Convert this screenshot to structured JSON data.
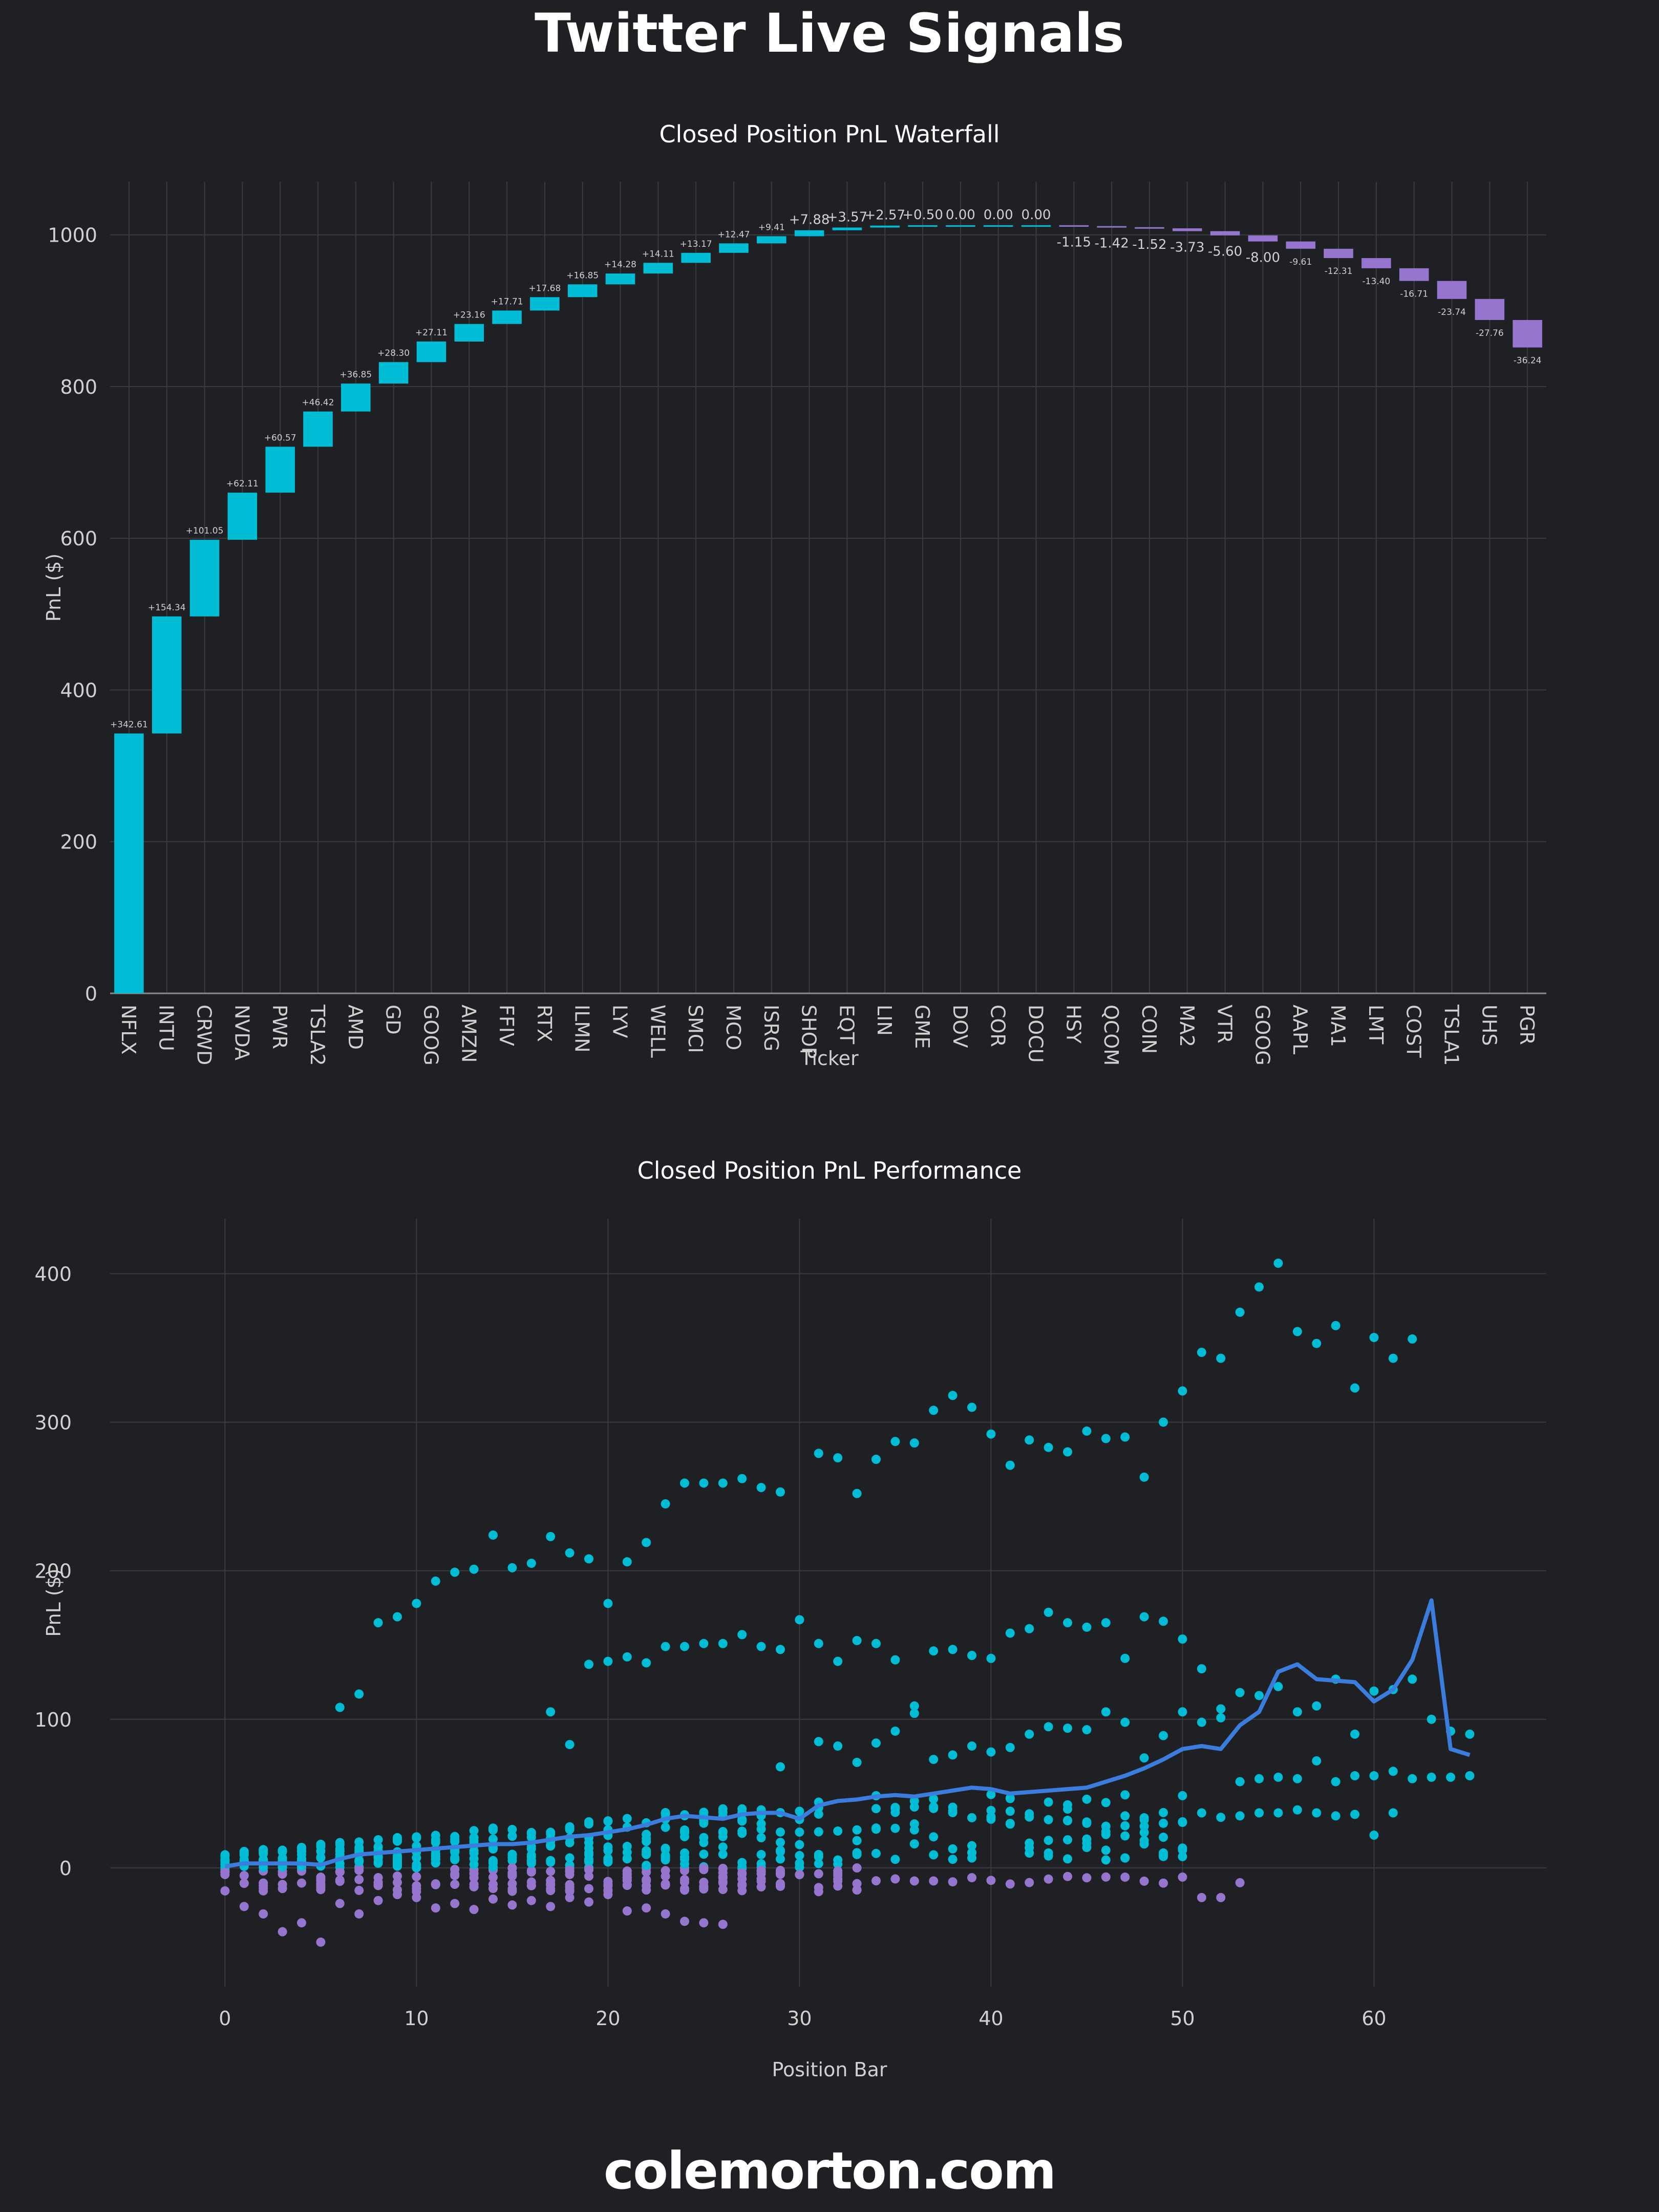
{
  "page": {
    "title": "Twitter Live Signals",
    "footer": "colemorton.com",
    "background": "#1f2024"
  },
  "colors": {
    "positive": "#00bcd4",
    "negative": "#9575cd",
    "rolling_line": "#3b7ddd",
    "grid": "#3a3b40",
    "text": "#d0d0d0"
  },
  "chart_data": [
    {
      "type": "bar",
      "subtype": "waterfall",
      "title": "Closed Position PnL Waterfall",
      "xlabel": "Ticker",
      "ylabel": "PnL ($)",
      "ylim": [
        0,
        1070
      ],
      "yticks": [
        0,
        200,
        400,
        600,
        800,
        1000
      ],
      "grid": true,
      "categories": [
        "NFLX",
        "INTU",
        "CRWD",
        "NVDA",
        "PWR",
        "TSLA2",
        "AMD",
        "GD",
        "GOOG",
        "AMZN",
        "FFIV",
        "RTX",
        "ILMN",
        "LYV",
        "WELL",
        "SMCI",
        "MCO",
        "ISRG",
        "SHOP",
        "EQT",
        "LIN",
        "GME",
        "DOV",
        "COR",
        "DOCU",
        "HSY",
        "QCOM",
        "COIN",
        "MA2",
        "VTR",
        "GOOG",
        "AAPL",
        "MA1",
        "LMT",
        "COST",
        "TSLA1",
        "UHS",
        "PGR"
      ],
      "values": [
        342.61,
        154.34,
        101.05,
        62.11,
        60.57,
        46.42,
        36.85,
        28.3,
        27.11,
        23.16,
        17.71,
        17.68,
        16.85,
        14.28,
        14.11,
        13.17,
        12.47,
        9.41,
        7.88,
        3.57,
        2.57,
        0.5,
        0.0,
        0.0,
        0.0,
        -1.15,
        -1.42,
        -1.52,
        -3.73,
        -5.6,
        -8.0,
        -9.61,
        -12.31,
        -13.4,
        -16.71,
        -23.74,
        -27.76,
        -36.24
      ],
      "labels": [
        "+342.61",
        "+154.34",
        "+101.05",
        "+62.11",
        "+60.57",
        "+46.42",
        "+36.85",
        "+28.30",
        "+27.11",
        "+23.16",
        "+17.71",
        "+17.68",
        "+16.85",
        "+14.28",
        "+14.11",
        "+13.17",
        "+12.47",
        "+9.41",
        "+7.88",
        "+3.57",
        "+2.57",
        "+0.50",
        "0.00",
        "0.00",
        "0.00",
        "-1.15",
        "-1.42",
        "-1.52",
        "-3.73",
        "-5.60",
        "-8.00",
        "-9.61",
        "-12.31",
        "-13.40",
        "-16.71",
        "-23.74",
        "-27.76",
        "-36.24"
      ]
    },
    {
      "type": "scatter",
      "title": "Closed Position PnL Performance",
      "xlabel": "Position Bar",
      "ylabel": "PnL ($)",
      "xlim": [
        -6,
        69
      ],
      "ylim": [
        -80,
        437
      ],
      "xticks": [
        0,
        10,
        20,
        30,
        40,
        50,
        60
      ],
      "yticks": [
        0,
        100,
        200,
        300,
        400
      ],
      "grid": true,
      "series": [
        {
          "role": "top-trajectory",
          "points": [
            [
              6,
              108
            ],
            [
              7,
              117
            ],
            [
              8,
              165
            ],
            [
              9,
              169
            ],
            [
              10,
              178
            ],
            [
              11,
              193
            ],
            [
              12,
              199
            ],
            [
              13,
              201
            ],
            [
              14,
              224
            ],
            [
              15,
              202
            ],
            [
              16,
              205
            ],
            [
              17,
              223
            ],
            [
              18,
              212
            ],
            [
              19,
              208
            ],
            [
              20,
              178
            ],
            [
              21,
              206
            ],
            [
              22,
              219
            ],
            [
              23,
              245
            ],
            [
              24,
              259
            ],
            [
              25,
              259
            ],
            [
              26,
              259
            ],
            [
              27,
              262
            ],
            [
              28,
              256
            ],
            [
              29,
              253
            ],
            [
              31,
              279
            ],
            [
              32,
              276
            ],
            [
              33,
              252
            ],
            [
              34,
              275
            ],
            [
              35,
              287
            ],
            [
              36,
              286
            ],
            [
              37,
              308
            ],
            [
              38,
              318
            ],
            [
              39,
              310
            ],
            [
              40,
              292
            ],
            [
              41,
              271
            ],
            [
              42,
              288
            ],
            [
              43,
              283
            ],
            [
              44,
              280
            ],
            [
              45,
              294
            ],
            [
              46,
              289
            ],
            [
              47,
              290
            ],
            [
              48,
              263
            ],
            [
              49,
              300
            ],
            [
              50,
              321
            ],
            [
              51,
              347
            ],
            [
              52,
              343
            ],
            [
              53,
              374
            ],
            [
              54,
              391
            ],
            [
              55,
              407
            ],
            [
              56,
              361
            ],
            [
              57,
              353
            ],
            [
              58,
              365
            ],
            [
              59,
              323
            ],
            [
              60,
              357
            ],
            [
              61,
              343
            ],
            [
              62,
              356
            ]
          ]
        },
        {
          "role": "mid-trajectory",
          "points": [
            [
              17,
              105
            ],
            [
              18,
              83
            ],
            [
              19,
              137
            ],
            [
              20,
              139
            ],
            [
              21,
              142
            ],
            [
              22,
              138
            ],
            [
              23,
              149
            ],
            [
              24,
              149
            ],
            [
              25,
              151
            ],
            [
              26,
              151
            ],
            [
              27,
              157
            ],
            [
              28,
              149
            ],
            [
              29,
              147
            ],
            [
              30,
              167
            ],
            [
              31,
              151
            ],
            [
              32,
              139
            ],
            [
              33,
              153
            ],
            [
              34,
              151
            ],
            [
              35,
              140
            ],
            [
              36,
              109
            ],
            [
              37,
              146
            ],
            [
              38,
              147
            ],
            [
              39,
              143
            ],
            [
              40,
              141
            ],
            [
              41,
              158
            ],
            [
              42,
              161
            ],
            [
              43,
              172
            ],
            [
              44,
              165
            ],
            [
              45,
              162
            ],
            [
              46,
              165
            ],
            [
              47,
              141
            ],
            [
              48,
              169
            ],
            [
              49,
              166
            ],
            [
              50,
              154
            ],
            [
              51,
              134
            ],
            [
              52,
              107
            ],
            [
              53,
              118
            ],
            [
              54,
              116
            ],
            [
              55,
              122
            ],
            [
              56,
              105
            ],
            [
              57,
              109
            ],
            [
              58,
              127
            ],
            [
              59,
              90
            ],
            [
              60,
              119
            ],
            [
              61,
              120
            ],
            [
              62,
              127
            ],
            [
              63,
              100
            ],
            [
              64,
              92
            ],
            [
              65,
              90
            ]
          ]
        },
        {
          "role": "lower-trajectory",
          "points": [
            [
              29,
              68
            ],
            [
              31,
              85
            ],
            [
              32,
              82
            ],
            [
              33,
              71
            ],
            [
              34,
              84
            ],
            [
              35,
              92
            ],
            [
              36,
              104
            ],
            [
              37,
              73
            ],
            [
              38,
              76
            ],
            [
              39,
              82
            ],
            [
              40,
              78
            ],
            [
              41,
              81
            ],
            [
              42,
              90
            ],
            [
              43,
              95
            ],
            [
              44,
              94
            ],
            [
              45,
              93
            ],
            [
              46,
              105
            ],
            [
              47,
              98
            ],
            [
              48,
              74
            ],
            [
              49,
              89
            ],
            [
              50,
              105
            ],
            [
              51,
              98
            ],
            [
              52,
              101
            ],
            [
              53,
              58
            ],
            [
              54,
              60
            ],
            [
              55,
              61
            ],
            [
              56,
              60
            ],
            [
              57,
              72
            ],
            [
              58,
              58
            ],
            [
              59,
              62
            ],
            [
              60,
              62
            ],
            [
              61,
              65
            ],
            [
              62,
              60
            ],
            [
              63,
              61
            ],
            [
              64,
              61
            ],
            [
              65,
              62
            ]
          ]
        },
        {
          "role": "fourth-trajectory",
          "points": [
            [
              44,
              32
            ],
            [
              45,
              30
            ],
            [
              46,
              28
            ],
            [
              47,
              35
            ],
            [
              48,
              28
            ],
            [
              49,
              30
            ],
            [
              50,
              31
            ],
            [
              51,
              37
            ],
            [
              52,
              34
            ],
            [
              53,
              35
            ],
            [
              54,
              37
            ],
            [
              55,
              37
            ],
            [
              56,
              39
            ],
            [
              57,
              37
            ],
            [
              58,
              35
            ],
            [
              59,
              36
            ],
            [
              60,
              22
            ],
            [
              61,
              37
            ]
          ]
        },
        {
          "role": "negative-outliers",
          "points": [
            [
              1,
              -26
            ],
            [
              2,
              -31
            ],
            [
              3,
              -43
            ],
            [
              4,
              -37
            ],
            [
              5,
              -50
            ],
            [
              6,
              -24
            ],
            [
              7,
              -31
            ],
            [
              8,
              -22
            ],
            [
              9,
              -18
            ],
            [
              10,
              -20
            ],
            [
              11,
              -27
            ],
            [
              12,
              -24
            ],
            [
              13,
              -28
            ],
            [
              14,
              -21
            ],
            [
              15,
              -25
            ],
            [
              16,
              -22
            ],
            [
              17,
              -26
            ],
            [
              18,
              -20
            ],
            [
              19,
              -23
            ],
            [
              20,
              -18
            ],
            [
              21,
              -29
            ],
            [
              22,
              -27
            ],
            [
              23,
              -31
            ],
            [
              24,
              -36
            ],
            [
              25,
              -37
            ],
            [
              26,
              -38
            ],
            [
              31,
              -16
            ],
            [
              51,
              -20
            ],
            [
              52,
              -20
            ],
            [
              53,
              -10
            ]
          ]
        }
      ],
      "rolling_mean": {
        "x": [
          0,
          1,
          2,
          3,
          4,
          5,
          6,
          7,
          8,
          9,
          10,
          11,
          12,
          13,
          14,
          15,
          16,
          17,
          18,
          19,
          20,
          21,
          22,
          23,
          24,
          25,
          26,
          27,
          28,
          29,
          30,
          31,
          32,
          33,
          34,
          35,
          36,
          37,
          38,
          39,
          40,
          41,
          42,
          43,
          44,
          45,
          46,
          47,
          48,
          49,
          50,
          51,
          52,
          53,
          54,
          55,
          56,
          57,
          58,
          59,
          60,
          61,
          62,
          63,
          64,
          65
        ],
        "y": [
          1,
          3,
          3,
          3,
          3,
          2,
          6,
          9,
          10,
          11,
          12,
          13,
          14,
          15,
          16,
          16,
          17,
          19,
          21,
          22,
          24,
          26,
          29,
          33,
          35,
          34,
          33,
          36,
          37,
          37,
          33,
          42,
          45,
          46,
          48,
          49,
          48,
          50,
          52,
          54,
          53,
          50,
          51,
          52,
          53,
          54,
          58,
          62,
          67,
          73,
          80,
          82,
          80,
          96,
          105,
          132,
          137,
          127,
          126,
          125,
          112,
          120,
          140,
          180,
          80,
          76
        ]
      }
    }
  ]
}
